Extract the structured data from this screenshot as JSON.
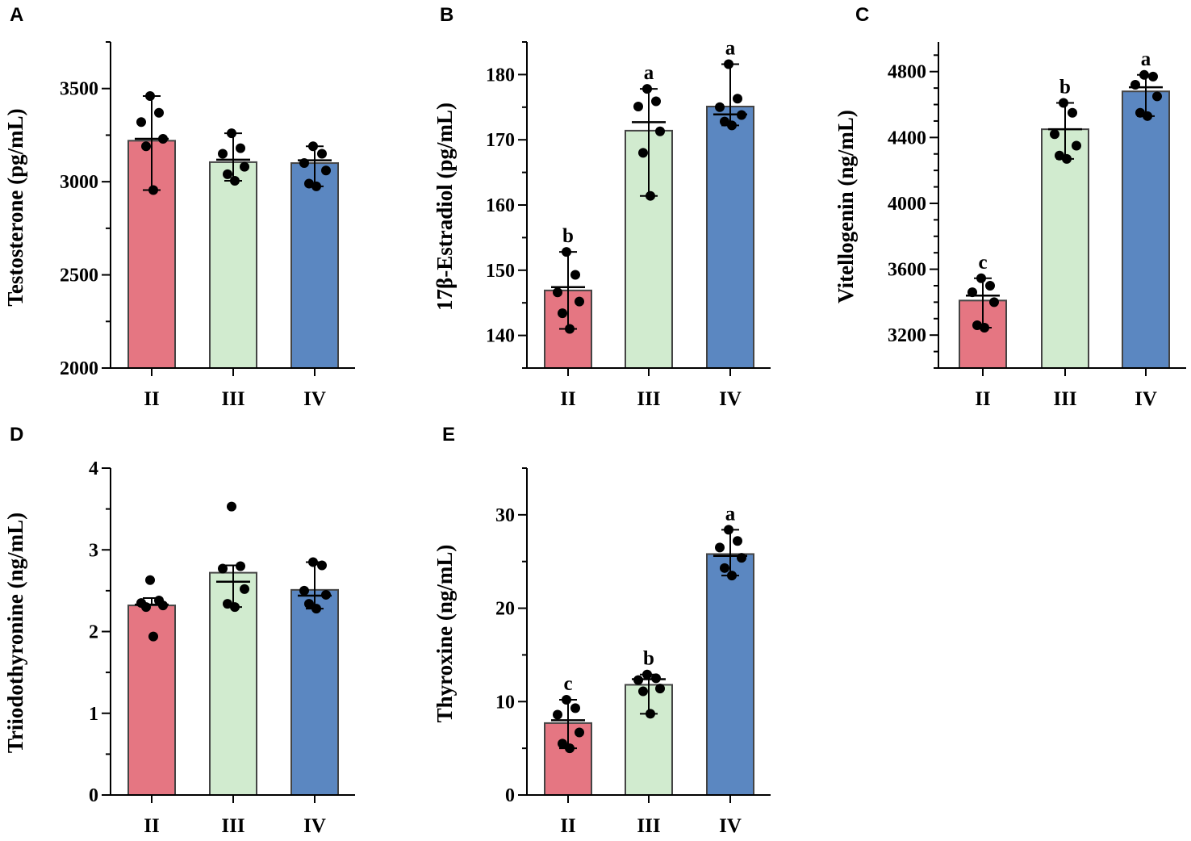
{
  "figure": {
    "background": "#ffffff"
  },
  "colors": {
    "II": "#e57682",
    "III": "#d1ebcf",
    "IV": "#5b87c1",
    "bar_edge": "#444444",
    "ink": "#000000"
  },
  "chart_data": [
    {
      "panel": "A",
      "type": "bar",
      "title": "",
      "ylabel": "Testosterone (pg/mL)",
      "xlabel": "",
      "categories": [
        "II",
        "III",
        "IV"
      ],
      "values": [
        3220,
        3105,
        3100
      ],
      "means": [
        3230,
        3118,
        3115
      ],
      "err_low": [
        2955,
        3005,
        2975
      ],
      "err_high": [
        3460,
        3260,
        3190
      ],
      "points": [
        [
          3460,
          3370,
          3320,
          3230,
          3190,
          2955
        ],
        [
          3260,
          3180,
          3150,
          3080,
          3040,
          3005
        ],
        [
          3190,
          3150,
          3100,
          3060,
          2990,
          2975
        ]
      ],
      "labels": [
        "",
        "",
        ""
      ],
      "ylim": [
        2000,
        3750
      ],
      "yticks": [
        2000,
        2500,
        3000,
        3500
      ],
      "yminor": 250
    },
    {
      "panel": "B",
      "type": "bar",
      "title": "",
      "ylabel": "17β-Estradiol (pg/mL)",
      "xlabel": "",
      "categories": [
        "II",
        "III",
        "IV"
      ],
      "values": [
        146.9,
        171.4,
        175.1
      ],
      "means": [
        147.4,
        172.7,
        173.9
      ],
      "err_low": [
        141.0,
        161.4,
        172.2
      ],
      "err_high": [
        152.8,
        177.8,
        181.6
      ],
      "points": [
        [
          152.8,
          149.3,
          146.6,
          145.2,
          143.4,
          141.0
        ],
        [
          177.8,
          175.9,
          175.1,
          171.3,
          168.0,
          161.4
        ],
        [
          181.6,
          176.3,
          175.0,
          173.8,
          172.8,
          172.2
        ]
      ],
      "labels": [
        "b",
        "a",
        "a"
      ],
      "ylim": [
        135,
        185
      ],
      "yticks": [
        140,
        150,
        160,
        170,
        180
      ],
      "yminor": 5
    },
    {
      "panel": "C",
      "type": "bar",
      "title": "",
      "ylabel": "Vitellogenin (ng/mL)",
      "xlabel": "",
      "categories": [
        "II",
        "III",
        "IV"
      ],
      "values": [
        3410,
        4450,
        4680
      ],
      "means": [
        3440,
        4450,
        4705
      ],
      "err_low": [
        3245,
        4270,
        4530
      ],
      "err_high": [
        3545,
        4610,
        4780
      ],
      "points": [
        [
          3545,
          3500,
          3460,
          3400,
          3260,
          3245
        ],
        [
          4610,
          4550,
          4420,
          4350,
          4290,
          4270
        ],
        [
          4780,
          4770,
          4720,
          4650,
          4550,
          4530
        ]
      ],
      "labels": [
        "c",
        "b",
        "a"
      ],
      "ylim": [
        3000,
        4980
      ],
      "yticks": [
        3200,
        3600,
        4000,
        4400,
        4800
      ],
      "yminor": 100
    },
    {
      "panel": "D",
      "type": "bar",
      "title": "",
      "ylabel": "Triiodothyronine (ng/mL)",
      "xlabel": "",
      "categories": [
        "II",
        "III",
        "IV"
      ],
      "values": [
        2.32,
        2.72,
        2.51
      ],
      "means": [
        2.33,
        2.61,
        2.44
      ],
      "err_low": [
        null,
        2.3,
        2.28
      ],
      "err_high": [
        2.41,
        2.81,
        2.85
      ],
      "points": [
        [
          2.63,
          2.38,
          2.35,
          2.32,
          2.3,
          1.94
        ],
        [
          3.53,
          2.8,
          2.77,
          2.52,
          2.34,
          2.3
        ],
        [
          2.85,
          2.81,
          2.5,
          2.45,
          2.34,
          2.28
        ]
      ],
      "labels": [
        "",
        "",
        ""
      ],
      "ylim": [
        0,
        4
      ],
      "yticks": [
        0,
        1,
        2,
        3,
        4
      ],
      "yminor": 0.5
    },
    {
      "panel": "E",
      "type": "bar",
      "title": "",
      "ylabel": "Thyroxine (ng/mL)",
      "xlabel": "",
      "categories": [
        "II",
        "III",
        "IV"
      ],
      "values": [
        7.7,
        11.8,
        25.8
      ],
      "means": [
        8.0,
        12.4,
        25.6
      ],
      "err_low": [
        5.0,
        8.7,
        23.5
      ],
      "err_high": [
        10.2,
        12.9,
        28.4
      ],
      "points": [
        [
          10.2,
          9.3,
          8.6,
          6.7,
          5.5,
          5.0
        ],
        [
          12.9,
          12.5,
          12.3,
          11.4,
          11.1,
          8.7
        ],
        [
          28.4,
          27.2,
          26.5,
          25.4,
          24.3,
          23.5
        ]
      ],
      "labels": [
        "c",
        "b",
        "a"
      ],
      "ylim": [
        0,
        35
      ],
      "yticks": [
        0,
        10,
        20,
        30
      ],
      "yminor": 5
    }
  ]
}
